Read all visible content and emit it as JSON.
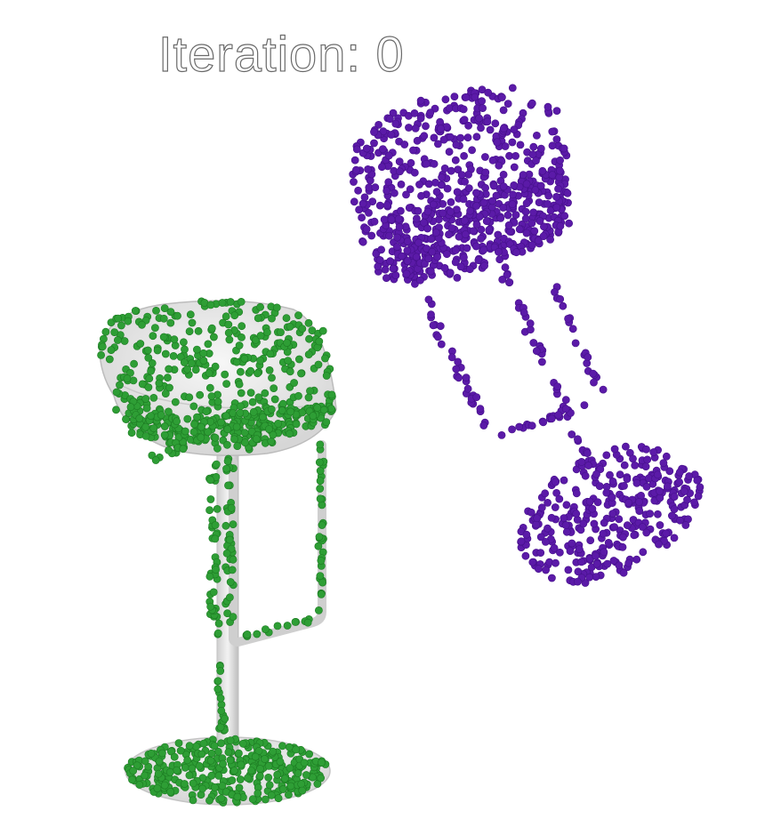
{
  "header": {
    "iteration_label": "Iteration: 0"
  },
  "colors": {
    "target_points": "#2e9e35",
    "target_points_edge": "#1c7a22",
    "source_points": "#5b1aa8",
    "source_points_edge": "#45108a",
    "mesh_fill": "#ececec",
    "mesh_edge": "#bdbdbd",
    "label_stroke": "#6a6a6a"
  },
  "objects": [
    {
      "name": "target-stool",
      "kind": "mesh-with-point-cloud",
      "point_color": "green"
    },
    {
      "name": "source-stool",
      "kind": "point-cloud",
      "point_color": "purple"
    }
  ]
}
